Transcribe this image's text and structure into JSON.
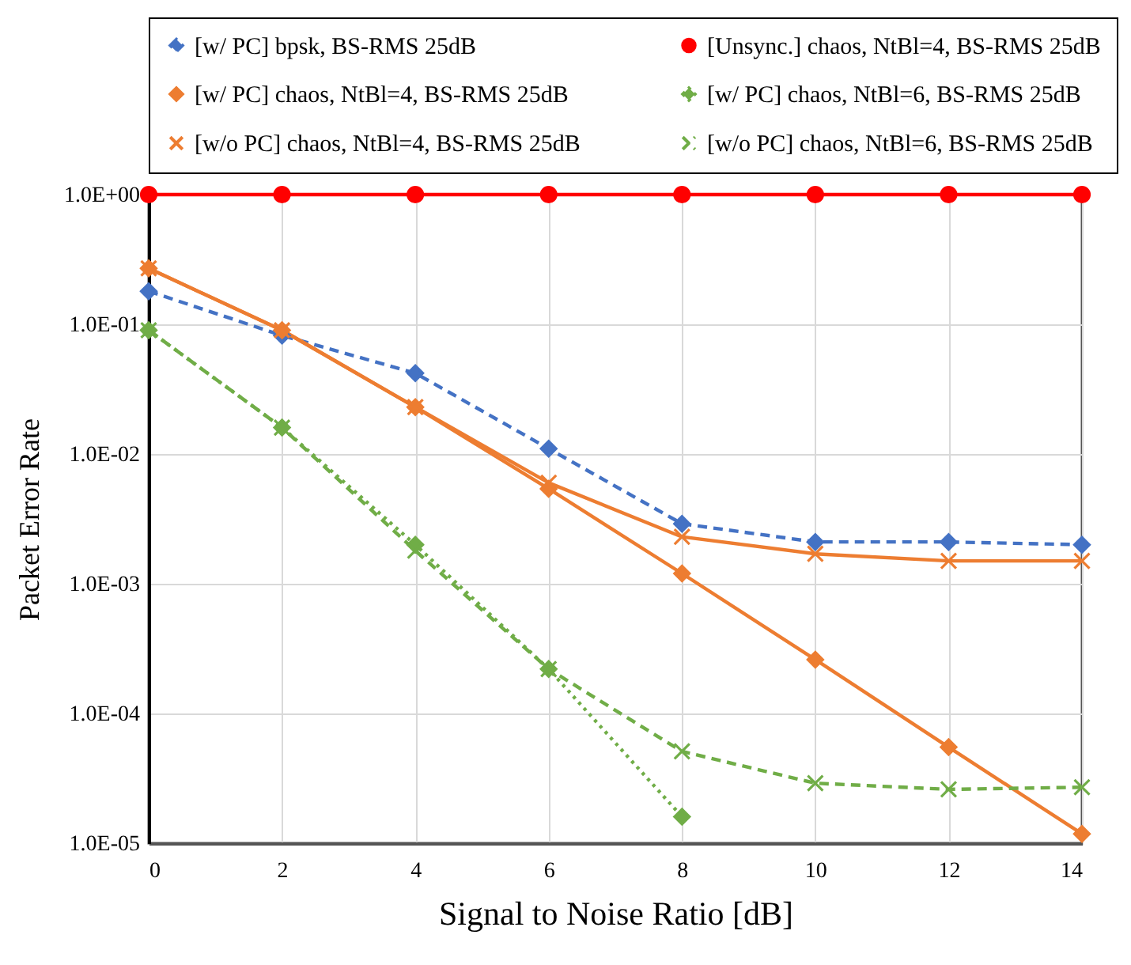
{
  "chart_data": {
    "type": "line",
    "xlabel": "Signal to Noise Ratio [dB]",
    "ylabel": "Packet Error Rate",
    "x": [
      0,
      2,
      4,
      6,
      8,
      10,
      12,
      14
    ],
    "xlim": [
      0,
      14
    ],
    "xticks": [
      0,
      2,
      4,
      6,
      8,
      10,
      12,
      14
    ],
    "ylim": [
      1e-05,
      1
    ],
    "yticks": [
      {
        "value": 1e-05,
        "label": "1.0E-05"
      },
      {
        "value": 0.0001,
        "label": "1.0E-04"
      },
      {
        "value": 0.001,
        "label": "1.0E-03"
      },
      {
        "value": 0.01,
        "label": "1.0E-02"
      },
      {
        "value": 0.1,
        "label": "1.0E-01"
      },
      {
        "value": 1,
        "label": "1.0E+00"
      }
    ],
    "log": true,
    "grid": true,
    "legend": "top",
    "series": [
      {
        "name": "[w/ PC] bpsk, BS-RMS 25dB",
        "color": "#4472c4",
        "marker": "diamond",
        "line_style": "dashed",
        "values": [
          0.18,
          0.082,
          0.042,
          0.011,
          0.0029,
          0.0021,
          0.0021,
          0.002
        ]
      },
      {
        "name": "[Unsync.] chaos, NtBl=4, BS-RMS 25dB",
        "color": "#ff0000",
        "marker": "circle",
        "line_style": "solid",
        "values": [
          1,
          1,
          1,
          1,
          1,
          1,
          1,
          1
        ]
      },
      {
        "name": "[w/ PC] chaos, NtBl=4, BS-RMS 25dB",
        "color": "#ed7d31",
        "marker": "diamond",
        "line_style": "solid",
        "values": [
          0.27,
          0.09,
          0.023,
          0.0054,
          0.0012,
          0.00026,
          5.5e-05,
          1.18e-05
        ]
      },
      {
        "name": "[w/ PC] chaos, NtBl=6, BS-RMS 25dB",
        "color": "#70ad47",
        "marker": "diamond",
        "line_style": "dotted",
        "values": [
          0.09,
          0.016,
          0.002,
          0.00022,
          1.6e-05,
          null,
          null,
          null
        ]
      },
      {
        "name": "[w/o PC] chaos, NtBl=4, BS-RMS 25dB",
        "color": "#ed7d31",
        "marker": "cross",
        "line_style": "solid",
        "values": [
          0.27,
          0.09,
          0.023,
          0.006,
          0.0023,
          0.0017,
          0.0015,
          0.0015
        ]
      },
      {
        "name": "[w/o PC] chaos, NtBl=6, BS-RMS 25dB",
        "color": "#70ad47",
        "marker": "cross",
        "line_style": "dashed",
        "values": [
          0.09,
          0.016,
          0.0018,
          0.00022,
          5.1e-05,
          2.9e-05,
          2.6e-05,
          2.7e-05
        ]
      }
    ]
  }
}
